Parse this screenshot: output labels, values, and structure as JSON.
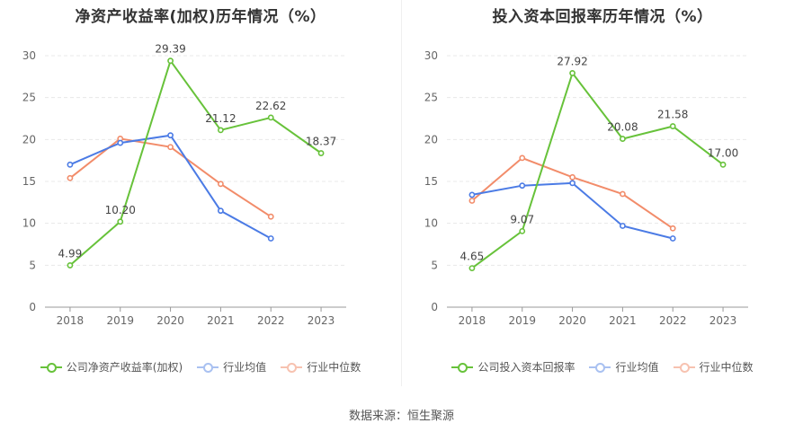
{
  "chart_data": [
    {
      "type": "line",
      "title": "净资产收益率(加权)历年情况（%）",
      "categories": [
        "2018",
        "2019",
        "2020",
        "2021",
        "2022",
        "2023"
      ],
      "ylim": [
        0,
        30
      ],
      "yticks": [
        "0",
        "5",
        "10",
        "15",
        "20",
        "25",
        "30"
      ],
      "xlabel": "",
      "ylabel": "",
      "legend_position": "bottom",
      "series": [
        {
          "name": "公司净资产收益率(加权)",
          "color": "#67c23a",
          "values": [
            4.99,
            10.2,
            29.39,
            21.12,
            22.62,
            18.37
          ],
          "labels": [
            "4.99",
            "10.20",
            "29.39",
            "21.12",
            "22.62",
            "18.37"
          ]
        },
        {
          "name": "行业均值",
          "color": "#4b7be5",
          "values": [
            17.0,
            19.6,
            20.5,
            11.5,
            8.2,
            null
          ]
        },
        {
          "name": "行业中位数",
          "color": "#f28c6a",
          "values": [
            15.4,
            20.1,
            19.1,
            14.7,
            10.8,
            null
          ]
        }
      ]
    },
    {
      "type": "line",
      "title": "投入资本回报率历年情况（%）",
      "categories": [
        "2018",
        "2019",
        "2020",
        "2021",
        "2022",
        "2023"
      ],
      "ylim": [
        0,
        30
      ],
      "yticks": [
        "0",
        "5",
        "10",
        "15",
        "20",
        "25",
        "30"
      ],
      "xlabel": "",
      "ylabel": "",
      "legend_position": "bottom",
      "series": [
        {
          "name": "公司投入资本回报率",
          "color": "#67c23a",
          "values": [
            4.65,
            9.07,
            27.92,
            20.08,
            21.58,
            17.0
          ],
          "labels": [
            "4.65",
            "9.07",
            "27.92",
            "20.08",
            "21.58",
            "17.00"
          ]
        },
        {
          "name": "行业均值",
          "color": "#4b7be5",
          "values": [
            13.4,
            14.5,
            14.8,
            9.7,
            8.2,
            null
          ]
        },
        {
          "name": "行业中位数",
          "color": "#f28c6a",
          "values": [
            12.7,
            17.8,
            15.5,
            13.5,
            9.4,
            null
          ]
        }
      ]
    }
  ],
  "footer": {
    "source": "数据来源：恒生聚源"
  }
}
